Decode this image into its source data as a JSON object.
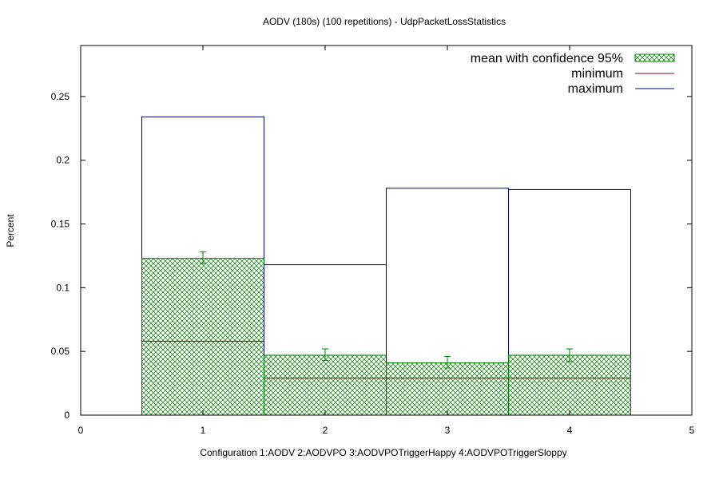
{
  "chart_data": {
    "type": "bar",
    "title": "AODV (180s) (100 repetitions) - UdpPacketLossStatistics",
    "xlabel": "Configuration 1:AODV  2:AODVPO  3:AODVPOTriggerHappy  4:AODVPOTriggerSloppy",
    "ylabel": "Percent",
    "xlim": [
      0,
      5
    ],
    "ylim": [
      0,
      0.29
    ],
    "x_ticks": [
      "0",
      "1",
      "2",
      "3",
      "4",
      "5"
    ],
    "y_ticks": [
      "0",
      "0.05",
      "0.1",
      "0.15",
      "0.2",
      "0.25"
    ],
    "grid": false,
    "legend_position": "top-right",
    "categories": [
      1,
      2,
      3,
      4
    ],
    "series": [
      {
        "name": "mean with confidence 95%",
        "values": [
          0.123,
          0.047,
          0.041,
          0.047
        ],
        "ci_low": [
          0.119,
          0.043,
          0.037,
          0.042
        ],
        "ci_high": [
          0.128,
          0.052,
          0.046,
          0.052
        ],
        "color": "#008000"
      },
      {
        "name": "minimum",
        "values": [
          0.058,
          0.029,
          0.029,
          0.029
        ],
        "color": "#8b0000"
      },
      {
        "name": "maximum",
        "values": [
          0.234,
          0.118,
          0.178,
          0.177
        ],
        "color": "#00008b"
      }
    ]
  }
}
